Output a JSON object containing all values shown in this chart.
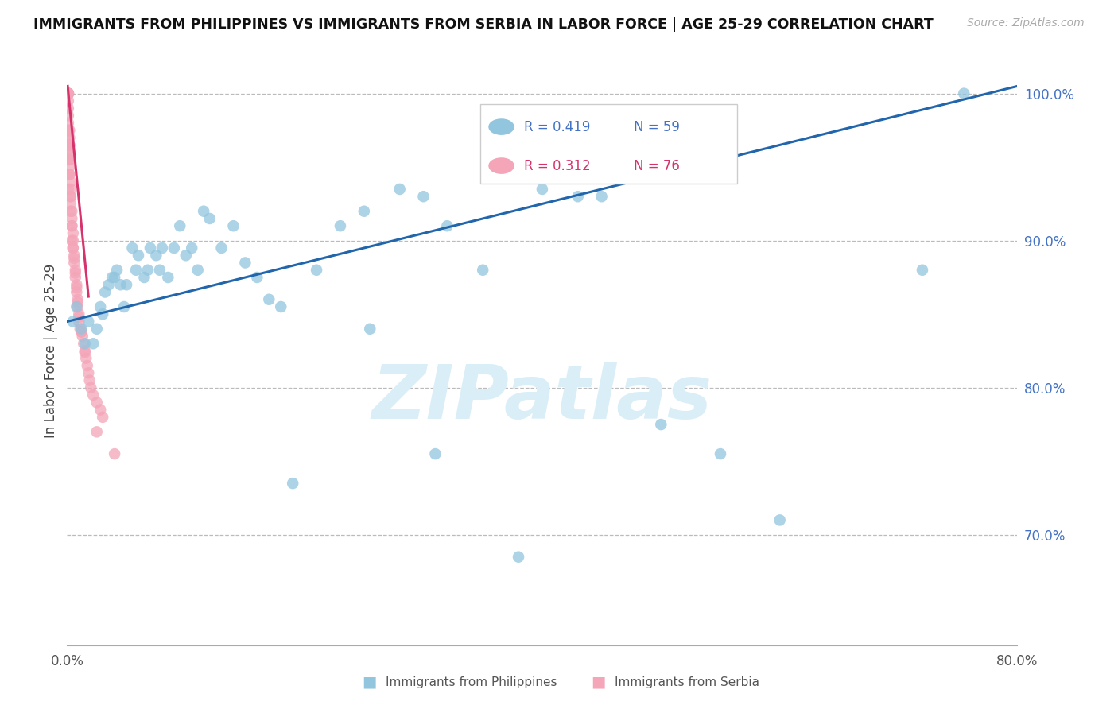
{
  "title": "IMMIGRANTS FROM PHILIPPINES VS IMMIGRANTS FROM SERBIA IN LABOR FORCE | AGE 25-29 CORRELATION CHART",
  "source": "Source: ZipAtlas.com",
  "ylabel": "In Labor Force | Age 25-29",
  "xlim": [
    0.0,
    0.8
  ],
  "ylim": [
    0.625,
    1.025
  ],
  "right_yticks": [
    0.7,
    0.8,
    0.9,
    1.0
  ],
  "right_ytick_labels": [
    "70.0%",
    "80.0%",
    "90.0%",
    "100.0%"
  ],
  "blue_color": "#92c5de",
  "pink_color": "#f4a5b8",
  "trend_blue_color": "#2166ac",
  "trend_pink_color": "#d6336c",
  "watermark": "ZIPatlas",
  "watermark_color": "#daeef8",
  "legend_R_blue": "R = 0.419",
  "legend_N_blue": "N = 59",
  "legend_R_pink": "R = 0.312",
  "legend_N_pink": "N = 76",
  "legend_blue_label": "Immigrants from Philippines",
  "legend_pink_label": "Immigrants from Serbia",
  "blue_trend_x0": 0.0,
  "blue_trend_y0": 0.845,
  "blue_trend_x1": 0.8,
  "blue_trend_y1": 1.005,
  "pink_trend_x0": 0.0005,
  "pink_trend_y0": 1.005,
  "pink_trend_x1": 0.018,
  "pink_trend_y1": 0.862,
  "phil_x": [
    0.005,
    0.008,
    0.012,
    0.015,
    0.018,
    0.022,
    0.025,
    0.028,
    0.03,
    0.032,
    0.035,
    0.038,
    0.04,
    0.042,
    0.045,
    0.048,
    0.05,
    0.055,
    0.058,
    0.06,
    0.065,
    0.068,
    0.07,
    0.075,
    0.078,
    0.08,
    0.085,
    0.09,
    0.095,
    0.1,
    0.105,
    0.11,
    0.115,
    0.12,
    0.13,
    0.14,
    0.15,
    0.16,
    0.17,
    0.18,
    0.19,
    0.21,
    0.23,
    0.25,
    0.28,
    0.3,
    0.32,
    0.35,
    0.38,
    0.4,
    0.43,
    0.6,
    0.72,
    0.755,
    0.255,
    0.31,
    0.45,
    0.5,
    0.55
  ],
  "phil_y": [
    0.845,
    0.855,
    0.84,
    0.83,
    0.845,
    0.83,
    0.84,
    0.855,
    0.85,
    0.865,
    0.87,
    0.875,
    0.875,
    0.88,
    0.87,
    0.855,
    0.87,
    0.895,
    0.88,
    0.89,
    0.875,
    0.88,
    0.895,
    0.89,
    0.88,
    0.895,
    0.875,
    0.895,
    0.91,
    0.89,
    0.895,
    0.88,
    0.92,
    0.915,
    0.895,
    0.91,
    0.885,
    0.875,
    0.86,
    0.855,
    0.735,
    0.88,
    0.91,
    0.92,
    0.935,
    0.93,
    0.91,
    0.88,
    0.685,
    0.935,
    0.93,
    0.71,
    0.88,
    1.0,
    0.84,
    0.755,
    0.93,
    0.775,
    0.755
  ],
  "serb_x": [
    0.001,
    0.001,
    0.001,
    0.001,
    0.001,
    0.001,
    0.001,
    0.001,
    0.001,
    0.001,
    0.002,
    0.002,
    0.002,
    0.002,
    0.002,
    0.002,
    0.003,
    0.003,
    0.003,
    0.003,
    0.004,
    0.004,
    0.004,
    0.005,
    0.005,
    0.005,
    0.006,
    0.006,
    0.007,
    0.007,
    0.008,
    0.008,
    0.009,
    0.009,
    0.01,
    0.01,
    0.011,
    0.012,
    0.013,
    0.014,
    0.015,
    0.016,
    0.017,
    0.018,
    0.019,
    0.02,
    0.022,
    0.025,
    0.028,
    0.03,
    0.001,
    0.001,
    0.001,
    0.001,
    0.001,
    0.001,
    0.001,
    0.001,
    0.002,
    0.002,
    0.002,
    0.002,
    0.003,
    0.003,
    0.004,
    0.004,
    0.005,
    0.006,
    0.007,
    0.008,
    0.009,
    0.01,
    0.012,
    0.015,
    0.025,
    0.04
  ],
  "serb_y": [
    1.0,
    1.0,
    1.0,
    1.0,
    1.0,
    1.0,
    0.98,
    0.975,
    0.97,
    0.965,
    0.97,
    0.965,
    0.96,
    0.955,
    0.95,
    0.945,
    0.94,
    0.935,
    0.93,
    0.925,
    0.92,
    0.915,
    0.91,
    0.905,
    0.9,
    0.895,
    0.89,
    0.885,
    0.88,
    0.875,
    0.87,
    0.865,
    0.86,
    0.855,
    0.85,
    0.845,
    0.84,
    0.838,
    0.835,
    0.83,
    0.825,
    0.82,
    0.815,
    0.81,
    0.805,
    0.8,
    0.795,
    0.79,
    0.785,
    0.78,
    0.985,
    0.99,
    0.995,
    0.975,
    0.96,
    0.955,
    0.945,
    0.935,
    0.975,
    0.965,
    0.955,
    0.945,
    0.93,
    0.92,
    0.91,
    0.9,
    0.895,
    0.888,
    0.878,
    0.868,
    0.858,
    0.848,
    0.838,
    0.824,
    0.77,
    0.755
  ]
}
